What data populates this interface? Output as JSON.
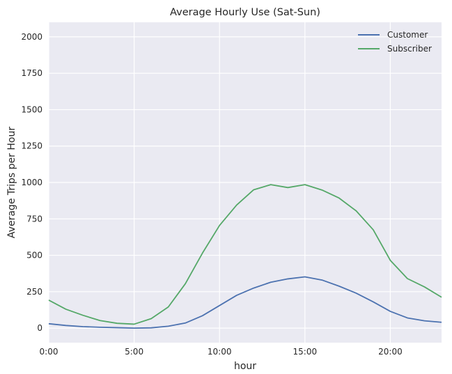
{
  "chart_data": {
    "type": "line",
    "title": "Average Hourly Use (Sat-Sun)",
    "xlabel": "hour",
    "ylabel": "Average Trips per Hour",
    "xlim": [
      0,
      23
    ],
    "ylim": [
      -100,
      2100
    ],
    "x_ticks": [
      {
        "value": 0,
        "label": "0:00"
      },
      {
        "value": 5,
        "label": "5:00"
      },
      {
        "value": 10,
        "label": "10:00"
      },
      {
        "value": 15,
        "label": "15:00"
      },
      {
        "value": 20,
        "label": "20:00"
      }
    ],
    "y_ticks": [
      0,
      250,
      500,
      750,
      1000,
      1250,
      1500,
      1750,
      2000
    ],
    "grid": true,
    "legend": "top-right",
    "x": [
      0,
      1,
      2,
      3,
      4,
      5,
      6,
      7,
      8,
      9,
      10,
      11,
      12,
      13,
      14,
      15,
      16,
      17,
      18,
      19,
      20,
      21,
      22,
      23
    ],
    "series": [
      {
        "name": "Customer",
        "color": "#4c72b0",
        "values": [
          30,
          18,
          10,
          6,
          3,
          0,
          2,
          13,
          35,
          85,
          155,
          225,
          275,
          315,
          338,
          352,
          330,
          288,
          240,
          180,
          115,
          70,
          50,
          40
        ]
      },
      {
        "name": "Subscriber",
        "color": "#55a868",
        "values": [
          192,
          130,
          88,
          52,
          33,
          27,
          65,
          145,
          305,
          515,
          705,
          845,
          950,
          985,
          965,
          985,
          948,
          893,
          805,
          675,
          465,
          340,
          283,
          212
        ]
      }
    ]
  }
}
